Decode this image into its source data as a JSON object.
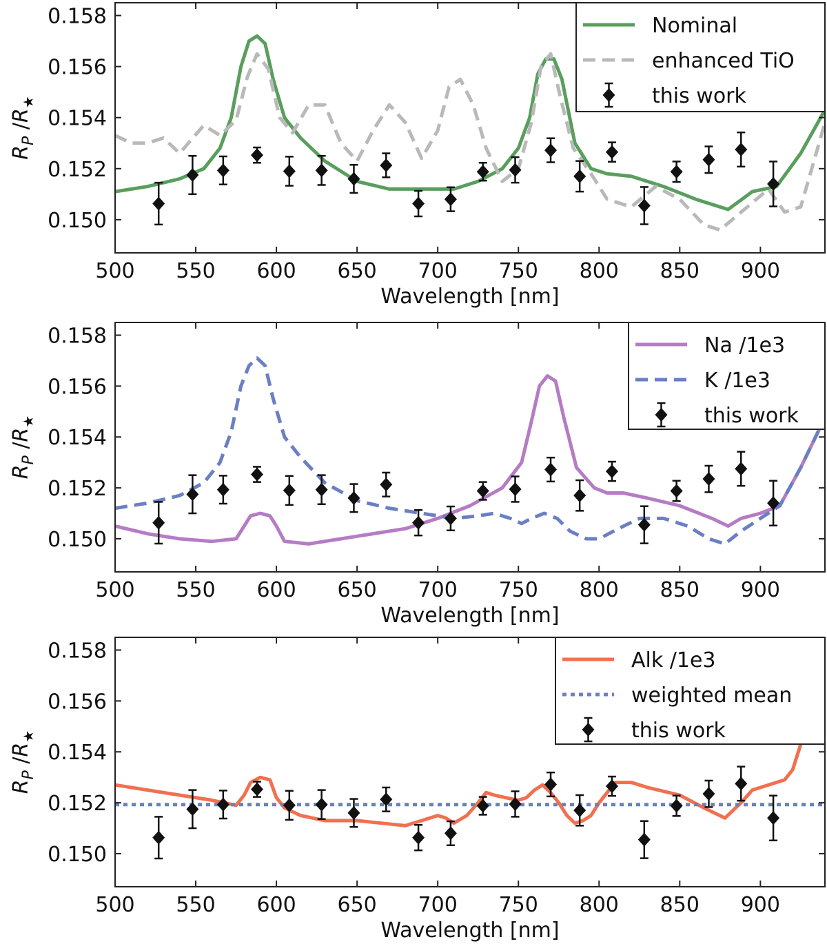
{
  "chart_data": [
    {
      "type": "line",
      "xlabel": "Wavelength [nm]",
      "ylabel_base": "R",
      "ylabel_sub_num": "P",
      "ylabel_sep": "/",
      "ylabel_sub_den": "★",
      "xlim": [
        500,
        940
      ],
      "ylim": [
        0.1487,
        0.1585
      ],
      "xticks": [
        "500",
        "550",
        "600",
        "650",
        "700",
        "750",
        "800",
        "850",
        "900"
      ],
      "yticks": [
        "0.150",
        "0.152",
        "0.154",
        "0.156",
        "0.158"
      ],
      "legend_position": "top-right",
      "series": [
        {
          "name": "Nominal",
          "style": "solid",
          "color": "#5a9e5e",
          "x": [
            500,
            520,
            540,
            555,
            565,
            572,
            578,
            583,
            588,
            593,
            598,
            605,
            615,
            630,
            650,
            670,
            690,
            710,
            725,
            740,
            750,
            757,
            762,
            767,
            772,
            777,
            785,
            795,
            805,
            820,
            840,
            860,
            880,
            895,
            910,
            925,
            940
          ],
          "y": [
            0.1511,
            0.1513,
            0.1516,
            0.152,
            0.1528,
            0.154,
            0.156,
            0.157,
            0.1572,
            0.1569,
            0.1555,
            0.154,
            0.1532,
            0.1523,
            0.1515,
            0.1512,
            0.1512,
            0.1512,
            0.1515,
            0.152,
            0.1528,
            0.154,
            0.1557,
            0.1563,
            0.1563,
            0.1555,
            0.153,
            0.152,
            0.1518,
            0.1517,
            0.1513,
            0.1508,
            0.1504,
            0.1511,
            0.1513,
            0.1526,
            0.1543
          ]
        },
        {
          "name": "enhanced TiO",
          "style": "dashed",
          "color": "#b9b9b9",
          "x": [
            500,
            510,
            520,
            530,
            540,
            555,
            565,
            575,
            582,
            588,
            595,
            602,
            610,
            620,
            630,
            640,
            650,
            660,
            670,
            680,
            690,
            700,
            707,
            714,
            722,
            730,
            740,
            750,
            758,
            764,
            770,
            776,
            784,
            795,
            805,
            820,
            835,
            850,
            865,
            875,
            890,
            905,
            915,
            925,
            940
          ],
          "y": [
            0.1533,
            0.153,
            0.153,
            0.1532,
            0.1526,
            0.1537,
            0.1533,
            0.1539,
            0.1556,
            0.1565,
            0.1559,
            0.154,
            0.1534,
            0.1545,
            0.1545,
            0.153,
            0.1523,
            0.1535,
            0.1545,
            0.1538,
            0.1524,
            0.1535,
            0.1552,
            0.1555,
            0.1545,
            0.1528,
            0.1515,
            0.152,
            0.1538,
            0.156,
            0.1565,
            0.1548,
            0.1528,
            0.1518,
            0.1508,
            0.1505,
            0.1513,
            0.1508,
            0.1498,
            0.1496,
            0.1504,
            0.1512,
            0.1503,
            0.1505,
            0.1538
          ]
        }
      ],
      "points": {
        "name": "this work",
        "x": [
          527,
          548,
          567,
          588,
          608,
          628,
          648,
          668,
          688,
          708,
          728,
          748,
          770,
          788,
          808,
          828,
          848,
          868,
          888,
          908
        ],
        "y": [
          0.15063,
          0.15175,
          0.15193,
          0.15253,
          0.1519,
          0.15193,
          0.1516,
          0.15213,
          0.15063,
          0.1508,
          0.15188,
          0.15195,
          0.15272,
          0.1517,
          0.15265,
          0.15055,
          0.15188,
          0.15235,
          0.15275,
          0.1514
        ],
        "err": [
          0.00082,
          0.00075,
          0.00055,
          0.0003,
          0.00057,
          0.00057,
          0.00055,
          0.00047,
          0.0005,
          0.00047,
          0.00035,
          0.0005,
          0.00047,
          0.0006,
          0.00038,
          0.00073,
          0.0004,
          0.00052,
          0.00067,
          0.00088
        ]
      }
    },
    {
      "type": "line",
      "xlabel": "Wavelength [nm]",
      "ylabel_base": "R",
      "ylabel_sub_num": "P",
      "ylabel_sep": "/",
      "ylabel_sub_den": "★",
      "xlim": [
        500,
        940
      ],
      "ylim": [
        0.1487,
        0.1585
      ],
      "xticks": [
        "500",
        "550",
        "600",
        "650",
        "700",
        "750",
        "800",
        "850",
        "900"
      ],
      "yticks": [
        "0.150",
        "0.152",
        "0.154",
        "0.156",
        "0.158"
      ],
      "legend_position": "top-right",
      "series": [
        {
          "name": "Na /1e3",
          "style": "solid",
          "color": "#b57cc4",
          "x": [
            500,
            520,
            540,
            560,
            575,
            580,
            584,
            590,
            596,
            600,
            605,
            620,
            640,
            660,
            680,
            700,
            720,
            740,
            752,
            758,
            763,
            768,
            773,
            778,
            786,
            797,
            805,
            815,
            830,
            850,
            870,
            880,
            888,
            900,
            912,
            925,
            938
          ],
          "y": [
            0.1505,
            0.1502,
            0.15,
            0.1499,
            0.15,
            0.1505,
            0.1509,
            0.151,
            0.1509,
            0.1505,
            0.1499,
            0.1498,
            0.15,
            0.1502,
            0.1504,
            0.1508,
            0.1513,
            0.152,
            0.153,
            0.1546,
            0.156,
            0.1564,
            0.1562,
            0.1548,
            0.1528,
            0.152,
            0.1518,
            0.1518,
            0.1516,
            0.1513,
            0.1508,
            0.1505,
            0.1508,
            0.151,
            0.1513,
            0.1528,
            0.1545
          ]
        },
        {
          "name": "K /1e3",
          "style": "dashed",
          "color": "#6a7fc4",
          "x": [
            500,
            520,
            540,
            555,
            565,
            572,
            578,
            583,
            588,
            593,
            598,
            605,
            615,
            630,
            650,
            670,
            690,
            710,
            725,
            735,
            745,
            752,
            758,
            766,
            774,
            782,
            792,
            800,
            812,
            825,
            840,
            855,
            868,
            878,
            888,
            900,
            912,
            925,
            938
          ],
          "y": [
            0.1512,
            0.1514,
            0.1517,
            0.1522,
            0.153,
            0.1542,
            0.156,
            0.1568,
            0.1571,
            0.1568,
            0.1555,
            0.154,
            0.1532,
            0.1522,
            0.1515,
            0.1512,
            0.151,
            0.1508,
            0.1509,
            0.151,
            0.1508,
            0.1506,
            0.1508,
            0.151,
            0.1508,
            0.1503,
            0.15,
            0.15,
            0.1504,
            0.1508,
            0.1508,
            0.1505,
            0.15,
            0.1498,
            0.1503,
            0.1508,
            0.1513,
            0.1528,
            0.1545
          ]
        }
      ],
      "points": {
        "name": "this work",
        "x": [
          527,
          548,
          567,
          588,
          608,
          628,
          648,
          668,
          688,
          708,
          728,
          748,
          770,
          788,
          808,
          828,
          848,
          868,
          888,
          908
        ],
        "y": [
          0.15063,
          0.15175,
          0.15193,
          0.15253,
          0.1519,
          0.15193,
          0.1516,
          0.15213,
          0.15063,
          0.1508,
          0.15188,
          0.15195,
          0.15272,
          0.1517,
          0.15265,
          0.15055,
          0.15188,
          0.15235,
          0.15275,
          0.1514
        ],
        "err": [
          0.00082,
          0.00075,
          0.00055,
          0.0003,
          0.00057,
          0.00057,
          0.00055,
          0.00047,
          0.0005,
          0.00047,
          0.00035,
          0.0005,
          0.00047,
          0.0006,
          0.00038,
          0.00073,
          0.0004,
          0.00052,
          0.00067,
          0.00088
        ]
      }
    },
    {
      "type": "line",
      "xlabel": "Wavelength [nm]",
      "ylabel_base": "R",
      "ylabel_sub_num": "P",
      "ylabel_sep": "/",
      "ylabel_sub_den": "★",
      "xlim": [
        500,
        940
      ],
      "ylim": [
        0.1487,
        0.1585
      ],
      "xticks": [
        "500",
        "550",
        "600",
        "650",
        "700",
        "750",
        "800",
        "850",
        "900"
      ],
      "yticks": [
        "0.150",
        "0.152",
        "0.154",
        "0.156",
        "0.158"
      ],
      "legend_position": "top-right",
      "series": [
        {
          "name": "Alk /1e3",
          "style": "solid",
          "color": "#f07050",
          "x": [
            500,
            520,
            540,
            560,
            575,
            580,
            584,
            590,
            596,
            600,
            605,
            615,
            630,
            650,
            665,
            680,
            690,
            700,
            705,
            710,
            718,
            725,
            730,
            735,
            742,
            750,
            755,
            760,
            765,
            770,
            775,
            780,
            785,
            790,
            795,
            800,
            805,
            810,
            820,
            830,
            850,
            865,
            878,
            888,
            895,
            905,
            915,
            920,
            925,
            935
          ],
          "y": [
            0.1527,
            0.1525,
            0.1523,
            0.1521,
            0.1519,
            0.1523,
            0.1528,
            0.153,
            0.1529,
            0.1522,
            0.1518,
            0.1515,
            0.1513,
            0.1513,
            0.1512,
            0.1511,
            0.1513,
            0.1515,
            0.1514,
            0.1512,
            0.1515,
            0.152,
            0.1524,
            0.1523,
            0.1522,
            0.1521,
            0.1522,
            0.1525,
            0.1527,
            0.1524,
            0.152,
            0.1515,
            0.1512,
            0.1513,
            0.1515,
            0.152,
            0.1524,
            0.1528,
            0.1528,
            0.1526,
            0.1523,
            0.1518,
            0.1514,
            0.152,
            0.1525,
            0.1527,
            0.1529,
            0.1533,
            0.1543,
            0.156
          ]
        },
        {
          "name": "weighted mean",
          "style": "dotted",
          "color": "#6a7fc4",
          "x": [
            500,
            940
          ],
          "y": [
            0.15193,
            0.15193
          ]
        }
      ],
      "points": {
        "name": "this work",
        "x": [
          527,
          548,
          567,
          588,
          608,
          628,
          648,
          668,
          688,
          708,
          728,
          748,
          770,
          788,
          808,
          828,
          848,
          868,
          888,
          908
        ],
        "y": [
          0.15063,
          0.15175,
          0.15193,
          0.15253,
          0.1519,
          0.15193,
          0.1516,
          0.15213,
          0.15063,
          0.1508,
          0.15188,
          0.15195,
          0.15272,
          0.1517,
          0.15265,
          0.15055,
          0.15188,
          0.15235,
          0.15275,
          0.1514
        ],
        "err": [
          0.00082,
          0.00075,
          0.00055,
          0.0003,
          0.00057,
          0.00057,
          0.00055,
          0.00047,
          0.0005,
          0.00047,
          0.00035,
          0.0005,
          0.00047,
          0.0006,
          0.00038,
          0.00073,
          0.0004,
          0.00052,
          0.00067,
          0.00088
        ]
      }
    }
  ]
}
